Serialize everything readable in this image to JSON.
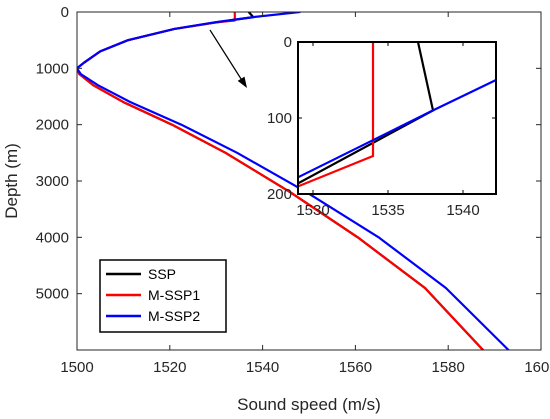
{
  "chart_data": [
    {
      "type": "line",
      "title": "",
      "xlabel": "Sound speed (m/s)",
      "ylabel": "Depth (m)",
      "xlim": [
        1500,
        1600
      ],
      "ylim": [
        0,
        6000
      ],
      "y_reversed": true,
      "x_ticks": [
        1500,
        1520,
        1540,
        1560,
        1580,
        1600
      ],
      "y_ticks": [
        0,
        1000,
        2000,
        3000,
        4000,
        5000
      ],
      "grid": false,
      "legend_position": "bottom-left",
      "colors": {
        "SSP": "#000000",
        "M-SSP1": "#ff0000",
        "M-SSP2": "#0000ff"
      },
      "series": [
        {
          "name": "SSP",
          "x": [
            1537.0,
            1538.0,
            1530.0,
            1521.0,
            1511.0,
            1505.0,
            1501.5,
            1500.0,
            1500.5,
            1503.5,
            1510.0,
            1520.5,
            1532.0,
            1546.0,
            1560.5,
            1575.0,
            1587.5
          ],
          "y": [
            0,
            90,
            185,
            300,
            500,
            700,
            900,
            1000,
            1100,
            1300,
            1600,
            2000,
            2500,
            3200,
            4000,
            4900,
            6000
          ]
        },
        {
          "name": "M-SSP1",
          "x": [
            1534.0,
            1534.0,
            1529.8,
            1521.0,
            1511.0,
            1505.0,
            1501.5,
            1500.0,
            1500.5,
            1503.5,
            1510.0,
            1520.5,
            1532.0,
            1546.0,
            1560.5,
            1575.0,
            1587.5
          ],
          "y": [
            0,
            150,
            185,
            300,
            500,
            700,
            900,
            1000,
            1100,
            1300,
            1600,
            2000,
            2500,
            3200,
            4000,
            4900,
            6000
          ]
        },
        {
          "name": "M-SSP2",
          "x": [
            1548.0,
            1538.0,
            1530.0,
            1521.0,
            1511.0,
            1505.0,
            1501.5,
            1500.0,
            1500.8,
            1504.5,
            1511.5,
            1522.5,
            1534.5,
            1549.5,
            1565.0,
            1579.5,
            1593.0
          ],
          "y": [
            0,
            90,
            180,
            300,
            500,
            700,
            900,
            1000,
            1100,
            1300,
            1600,
            2000,
            2500,
            3200,
            4000,
            4900,
            6000
          ]
        }
      ]
    },
    {
      "type": "line",
      "title": "",
      "xlabel": "",
      "ylabel": "",
      "xlim": [
        1529,
        1542.2
      ],
      "ylim": [
        0,
        200
      ],
      "y_reversed": true,
      "x_ticks": [
        1530,
        1535,
        1540
      ],
      "y_ticks": [
        0,
        100,
        200
      ],
      "grid": false,
      "series": [
        {
          "name": "SSP",
          "x": [
            1537.0,
            1538.0,
            1529.0
          ],
          "y": [
            0,
            90,
            186
          ]
        },
        {
          "name": "M-SSP1",
          "x": [
            1534.0,
            1534.0,
            1529.0
          ],
          "y": [
            0,
            150,
            190
          ]
        },
        {
          "name": "M-SSP2",
          "x": [
            1542.2,
            1538.0,
            1529.0
          ],
          "y": [
            50,
            90,
            178
          ]
        }
      ]
    }
  ]
}
